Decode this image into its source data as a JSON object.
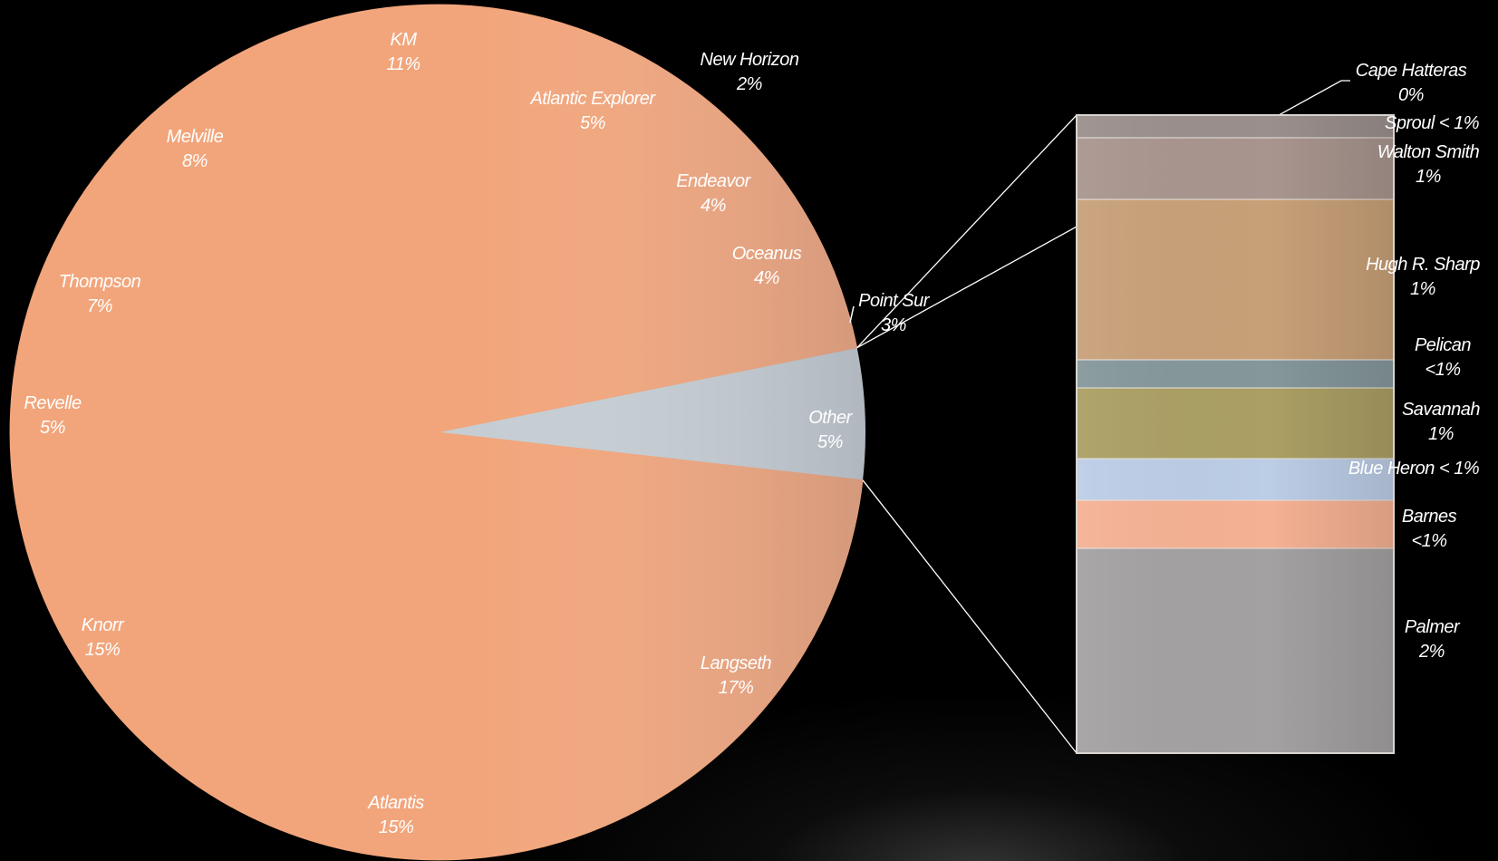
{
  "chart_data": {
    "type": "pie",
    "title": "",
    "main": {
      "slices": [
        {
          "label": "Other",
          "value_text": "5%",
          "value": 5,
          "color": "#c5cdd3",
          "detail": true
        },
        {
          "label": "Langseth",
          "value_text": "17%",
          "value": 17
        },
        {
          "label": "Atlantis",
          "value_text": "15%",
          "value": 15
        },
        {
          "label": "Knorr",
          "value_text": "15%",
          "value": 15
        },
        {
          "label": "Revelle",
          "value_text": "5%",
          "value": 5
        },
        {
          "label": "Thompson",
          "value_text": "7%",
          "value": 7
        },
        {
          "label": "Melville",
          "value_text": "8%",
          "value": 8
        },
        {
          "label": "KM",
          "value_text": "11%",
          "value": 11
        },
        {
          "label": "New Horizon",
          "value_text": "2%",
          "value": 2
        },
        {
          "label": "Atlantic Explorer",
          "value_text": "5%",
          "value": 5
        },
        {
          "label": "Endeavor",
          "value_text": "4%",
          "value": 4
        },
        {
          "label": "Oceanus",
          "value_text": "4%",
          "value": 4
        },
        {
          "label": "Point Sur",
          "value_text": "3%",
          "value": 3
        }
      ],
      "slice_color": "#f2a57b"
    },
    "detail_bar": {
      "segments": [
        {
          "label": "Cape Hatteras",
          "value_text": "0%",
          "value": 0,
          "color": "#9a8f8c"
        },
        {
          "label": "Sproul",
          "value_text": "< 1%",
          "value": 0.4,
          "color": "#a8958e"
        },
        {
          "label": "Walton Smith",
          "value_text": "1%",
          "value": 1,
          "color": "#c8a078"
        },
        {
          "label": "Hugh R. Sharp",
          "value_text": "1%",
          "value": 1,
          "color": "#85979b"
        },
        {
          "label": "Pelican",
          "value_text": "<1%",
          "value": 0.5,
          "color": "#ab9f64"
        },
        {
          "label": "Savannah",
          "value_text": "1%",
          "value": 1,
          "color": "#bccde6"
        },
        {
          "label": "Blue Heron",
          "value_text": "< 1%",
          "value": 0.5,
          "color": "#f5b193"
        },
        {
          "label": "Barnes",
          "value_text": "<1%",
          "value": 0.6,
          "color": "#a3a1a1"
        },
        {
          "label": "Palmer",
          "value_text": "2%",
          "value": 2,
          "color": "#e9cfb7"
        }
      ]
    }
  }
}
